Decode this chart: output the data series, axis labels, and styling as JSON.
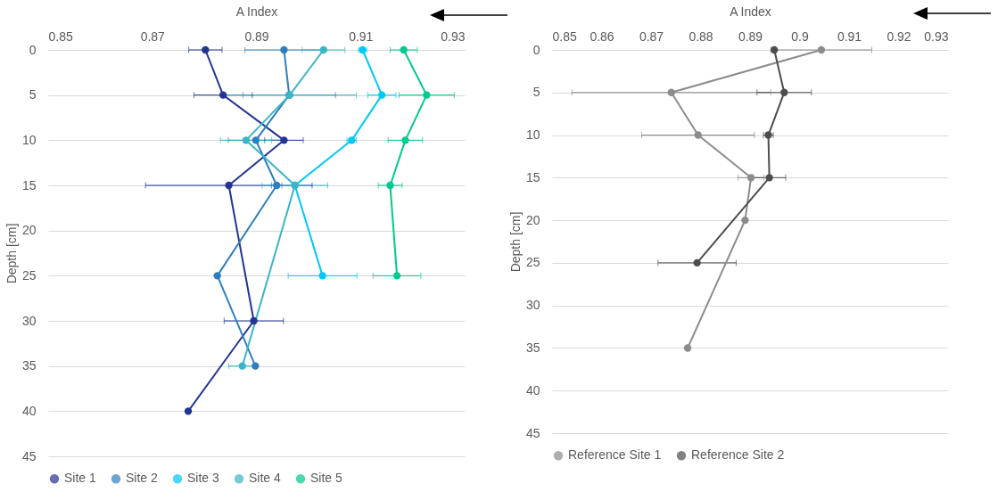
{
  "chart_data": [
    {
      "type": "line",
      "xlabel": "A Index",
      "ylabel": "Depth [cm]",
      "xlim": [
        0.85,
        0.93
      ],
      "xticks": [
        0.85,
        0.87,
        0.89,
        0.91,
        0.93
      ],
      "ylim": [
        45,
        0
      ],
      "yticks": [
        0,
        5,
        10,
        15,
        20,
        25,
        30,
        35,
        40,
        45
      ],
      "grid": "y",
      "legend": "bottom",
      "marker": "circle",
      "line_style": "solid",
      "series": [
        {
          "name": "Site 1",
          "color": "#233494",
          "x": [
            0.8802,
            0.8836,
            0.8953,
            0.8847,
            0.8895,
            0.8769
          ],
          "values": [
            0,
            5,
            10,
            15,
            30,
            40
          ],
          "xerrors": [
            0.0032,
            0.0056,
            0.0037,
            0.016,
            0.0057,
            null
          ]
        },
        {
          "name": "Site 2",
          "color": "#2e7ebf",
          "x": [
            0.8953,
            0.8963,
            0.8899,
            0.8939,
            0.8825,
            0.8898
          ],
          "values": [
            0,
            5,
            10,
            15,
            25,
            35
          ],
          "xerrors": [
            0.0075,
            0.0089,
            0.0053,
            0.001,
            null,
            null
          ]
        },
        {
          "name": "Site 3",
          "color": "#00c8f5",
          "x": [
            0.9104,
            0.9141,
            0.9083,
            0.8974,
            0.9027
          ],
          "values": [
            0,
            5,
            10,
            15,
            25
          ],
          "xerrors": [
            0.0008,
            0.0027,
            0.0009,
            null,
            0.0066
          ]
        },
        {
          "name": "Site 4",
          "color": "#3ab5c6",
          "x": [
            0.9029,
            0.8964,
            0.888,
            0.8974,
            0.8873
          ],
          "values": [
            0,
            5,
            10,
            15,
            35
          ],
          "xerrors": [
            0.0041,
            0.0128,
            0.0049,
            0.0063,
            0.0026
          ]
        },
        {
          "name": "Site 5",
          "color": "#00c98f",
          "x": [
            0.9183,
            0.9227,
            0.9186,
            0.9157,
            0.917
          ],
          "values": [
            0,
            5,
            10,
            15,
            25
          ],
          "xerrors": [
            0.0026,
            0.0053,
            0.0033,
            0.0023,
            0.0046
          ]
        }
      ]
    },
    {
      "type": "line",
      "xlabel": "A Index",
      "ylabel": "Depth [cm]",
      "xlim": [
        0.85,
        0.93
      ],
      "xticks": [
        0.85,
        0.86,
        0.87,
        0.88,
        0.89,
        0.9,
        0.91,
        0.92,
        0.93
      ],
      "ylim": [
        45,
        0
      ],
      "yticks": [
        0,
        5,
        10,
        15,
        20,
        25,
        30,
        35,
        40,
        45
      ],
      "grid": "y",
      "legend": "bottom",
      "marker": "circle",
      "line_style": "solid",
      "series": [
        {
          "name": "Reference Site 1",
          "color": "#8c8c8c",
          "x": [
            0.9044,
            0.8741,
            0.8795,
            0.8902,
            0.889,
            0.8774
          ],
          "values": [
            0,
            5,
            10,
            15,
            20,
            35
          ],
          "xerrors": [
            0.0102,
            0.0201,
            0.0114,
            0.0026,
            null,
            null
          ]
        },
        {
          "name": "Reference Site 2",
          "color": "#4d4d4d",
          "x": [
            0.8949,
            0.8969,
            0.8937,
            0.8939,
            0.8793
          ],
          "values": [
            0,
            5,
            10,
            15,
            25
          ],
          "xerrors": [
            null,
            0.0055,
            0.001,
            0.0033,
            0.0079
          ]
        }
      ]
    }
  ]
}
